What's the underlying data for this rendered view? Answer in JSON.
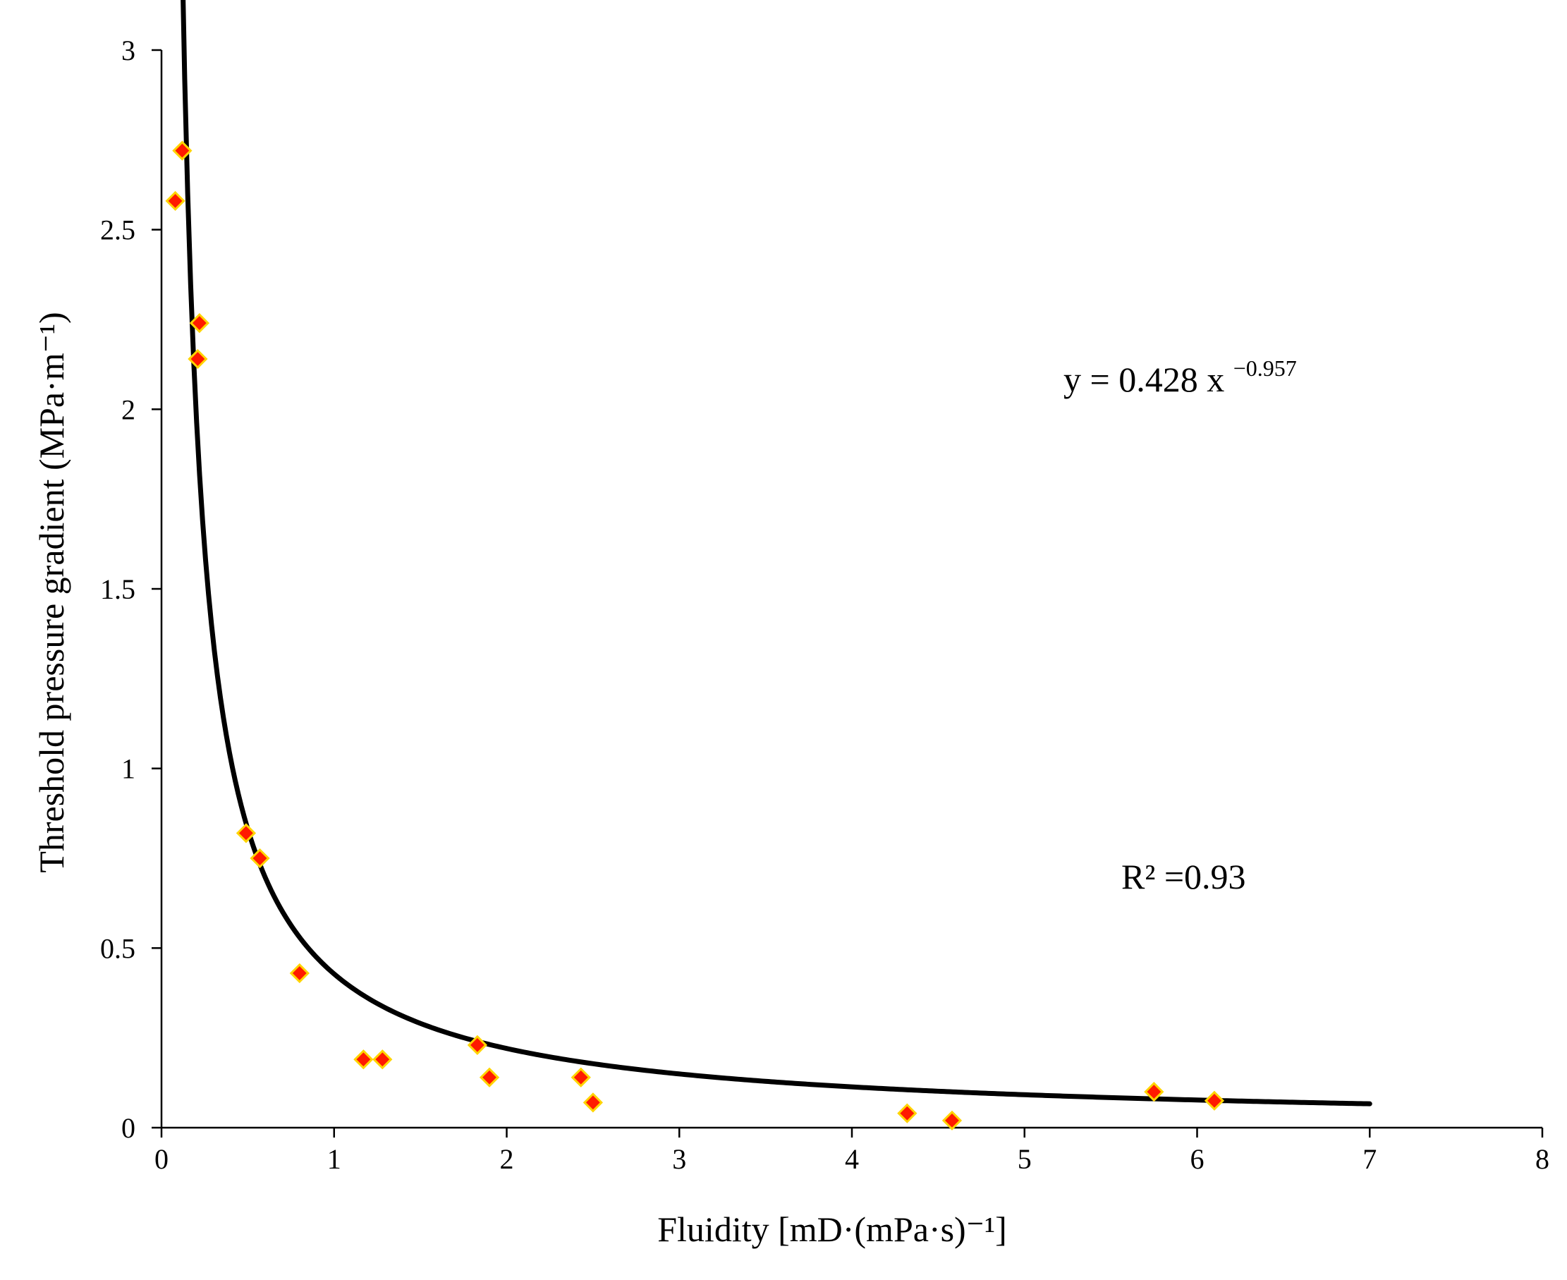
{
  "chart_data": {
    "type": "scatter",
    "title": "",
    "xlabel": "Fluidity [mD·(mPa·s)⁻¹]",
    "ylabel": "Threshold pressure gradient (MPa·m⁻¹)",
    "xlim": [
      0,
      8
    ],
    "ylim": [
      0,
      3
    ],
    "xticks": [
      0,
      1,
      2,
      3,
      4,
      5,
      6,
      7,
      8
    ],
    "yticks": [
      0,
      0.5,
      1,
      1.5,
      2,
      2.5,
      3
    ],
    "xtick_labels": [
      "0",
      "1",
      "2",
      "3",
      "4",
      "5",
      "6",
      "7",
      "8"
    ],
    "ytick_labels": [
      "0",
      "0.5",
      "1",
      "1.5",
      "2",
      "2.5",
      "3"
    ],
    "grid": false,
    "legend": "none",
    "series": [
      {
        "marker": "diamond",
        "color": "#ff1a00",
        "marker_edge_color": "#ffd400",
        "x": [
          0.08,
          0.12,
          0.21,
          0.22,
          0.49,
          0.57,
          0.8,
          1.17,
          1.28,
          1.83,
          1.9,
          2.43,
          2.5,
          4.32,
          4.58,
          5.75,
          6.1
        ],
        "y": [
          2.58,
          2.72,
          2.14,
          2.24,
          0.82,
          0.75,
          0.43,
          0.19,
          0.19,
          0.23,
          0.14,
          0.14,
          0.07,
          0.04,
          0.02,
          0.1,
          0.075
        ]
      }
    ],
    "trendline": {
      "type": "power",
      "a": 0.428,
      "b": -0.957,
      "x_range": [
        0.1,
        7.0
      ],
      "color": "#000000"
    },
    "annotations": {
      "equation_main": "y = 0.428 x",
      "equation_exp": "−0.957",
      "r2": "R² =0.93"
    }
  }
}
